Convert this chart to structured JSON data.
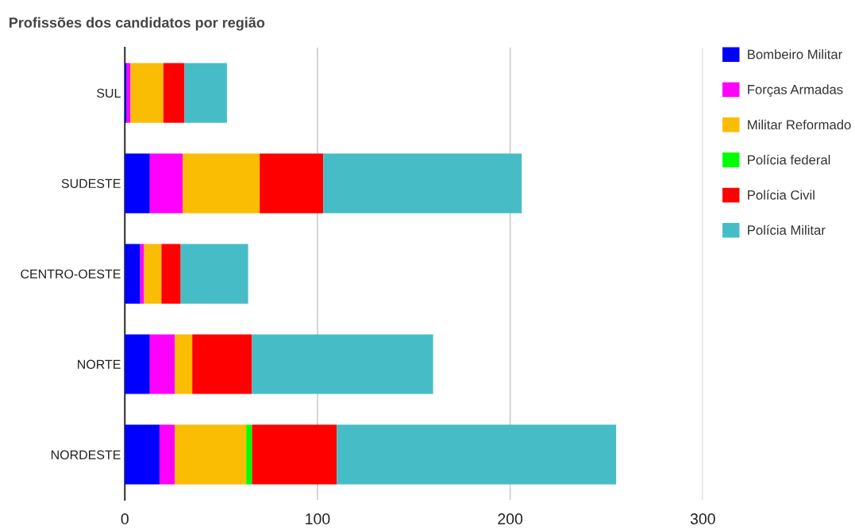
{
  "chart_data": {
    "type": "bar",
    "orientation": "horizontal",
    "stacked": true,
    "title": "Profissões dos candidatos por região",
    "categories": [
      "SUL",
      "SUDESTE",
      "CENTRO-OESTE",
      "NORTE",
      "NORDESTE"
    ],
    "series": [
      {
        "name": "Bombeiro Militar",
        "color": "#0000ff",
        "values": [
          1,
          13,
          8,
          13,
          18
        ]
      },
      {
        "name": "Forças Armadas",
        "color": "#ff00ff",
        "values": [
          2,
          17,
          2,
          13,
          8
        ]
      },
      {
        "name": "Militar Reformado",
        "color": "#fbbc04",
        "values": [
          17,
          40,
          9,
          9,
          37
        ]
      },
      {
        "name": "Polícia federal",
        "color": "#00ff00",
        "values": [
          0,
          0,
          0,
          0,
          3
        ]
      },
      {
        "name": "Polícia Civil",
        "color": "#ff0000",
        "values": [
          11,
          33,
          10,
          31,
          44
        ]
      },
      {
        "name": "Polícia Militar",
        "color": "#46bdc6",
        "values": [
          22,
          103,
          35,
          94,
          145
        ]
      }
    ],
    "xlim": [
      0,
      300
    ],
    "xticks": [
      0,
      100,
      200,
      300
    ],
    "grid": "x",
    "legend": "right"
  }
}
